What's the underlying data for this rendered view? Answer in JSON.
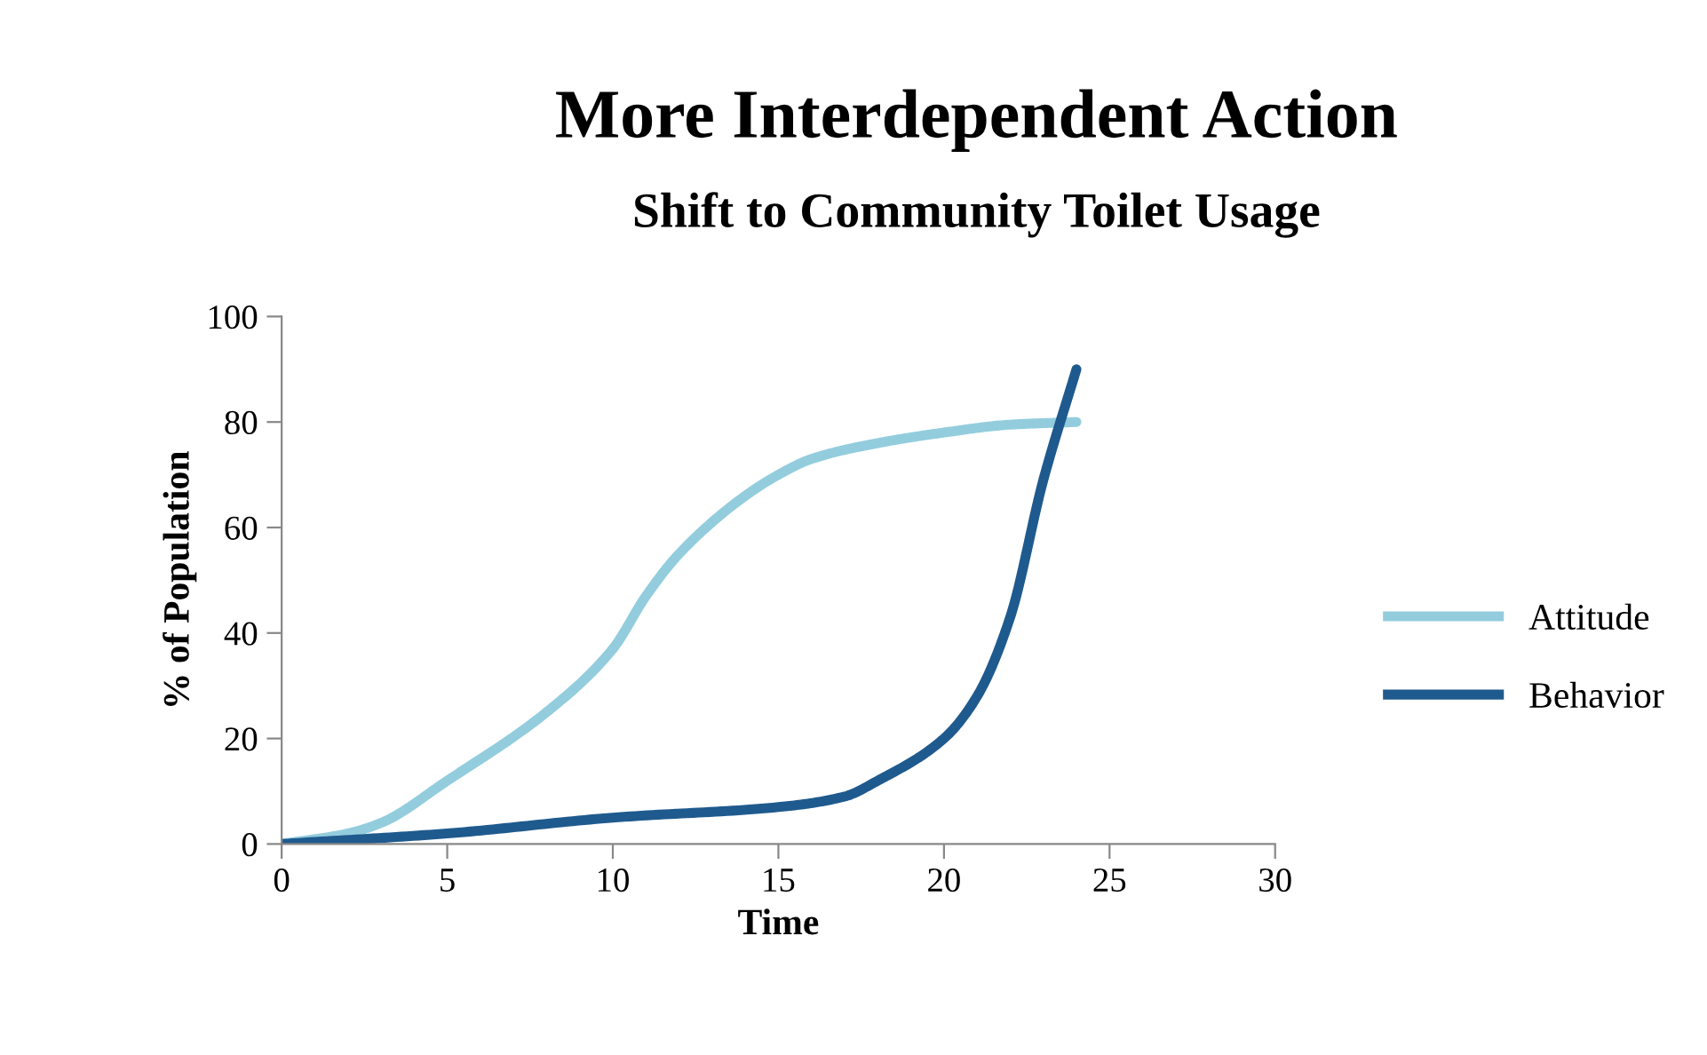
{
  "chart_data": {
    "type": "line",
    "title": "More Interdependent Action",
    "subtitle": "Shift to Community Toilet Usage",
    "xlabel": "Time",
    "ylabel": "% of Population",
    "xlim": [
      0,
      30
    ],
    "xticks": [
      0,
      5,
      10,
      15,
      20,
      25,
      30
    ],
    "ylim": [
      0,
      100
    ],
    "yticks": [
      0,
      20,
      40,
      60,
      80,
      100
    ],
    "grid": false,
    "legend": "right",
    "marker": "none",
    "line_style": "solid",
    "series": [
      {
        "name": "Attitude",
        "color": "#93cddd",
        "x": [
          0,
          2,
          3,
          5,
          8,
          10,
          11,
          12,
          14,
          15,
          16,
          18,
          20,
          22,
          24
        ],
        "values": [
          0,
          2,
          4,
          12,
          25,
          37,
          47,
          55,
          66,
          70,
          73,
          76,
          78,
          79.5,
          80
        ]
      },
      {
        "name": "Behavior",
        "color": "#1f5a8e",
        "x": [
          0,
          5,
          10,
          15,
          17,
          18,
          20,
          21,
          22,
          23,
          24
        ],
        "values": [
          0,
          2,
          5,
          7,
          9,
          12,
          20,
          28,
          43,
          69,
          90
        ]
      }
    ]
  }
}
